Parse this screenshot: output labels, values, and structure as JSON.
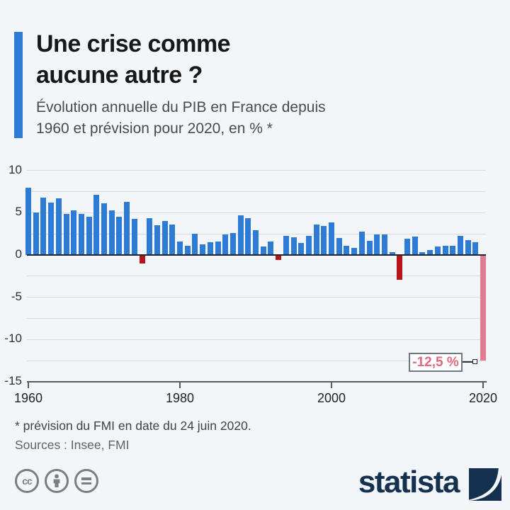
{
  "header": {
    "title_line1": "Une crise comme",
    "title_line2": "aucune autre ?",
    "subtitle_line1": "Évolution annuelle du PIB en France depuis",
    "subtitle_line2": "1960 et prévision pour 2020, en % *"
  },
  "chart_data": {
    "type": "bar",
    "title": "Une crise comme aucune autre ?",
    "xlabel": "",
    "ylabel": "Évolution annuelle du PIB en France, en %",
    "ylim": [
      -15,
      10
    ],
    "gridline_step": 2.5,
    "yticks": [
      10,
      5,
      0,
      -5,
      -10,
      -15
    ],
    "xticks": [
      1960,
      1980,
      2000,
      2020
    ],
    "x": [
      1960,
      1961,
      1962,
      1963,
      1964,
      1965,
      1966,
      1967,
      1968,
      1969,
      1970,
      1971,
      1972,
      1973,
      1974,
      1975,
      1976,
      1977,
      1978,
      1979,
      1980,
      1981,
      1982,
      1983,
      1984,
      1985,
      1986,
      1987,
      1988,
      1989,
      1990,
      1991,
      1992,
      1993,
      1994,
      1995,
      1996,
      1997,
      1998,
      1999,
      2000,
      2001,
      2002,
      2003,
      2004,
      2005,
      2006,
      2007,
      2008,
      2009,
      2010,
      2011,
      2012,
      2013,
      2014,
      2015,
      2016,
      2017,
      2018,
      2019,
      2020
    ],
    "values": [
      8.0,
      5.0,
      6.8,
      6.2,
      6.7,
      4.9,
      5.3,
      4.9,
      4.5,
      7.1,
      6.1,
      5.3,
      4.5,
      6.3,
      4.3,
      -1.0,
      4.4,
      3.5,
      4.0,
      3.6,
      1.6,
      1.1,
      2.5,
      1.3,
      1.5,
      1.6,
      2.4,
      2.6,
      4.7,
      4.4,
      2.9,
      1.0,
      1.6,
      -0.6,
      2.3,
      2.1,
      1.4,
      2.3,
      3.6,
      3.4,
      3.9,
      2.0,
      1.1,
      0.8,
      2.8,
      1.7,
      2.4,
      2.4,
      0.3,
      -2.9,
      1.9,
      2.2,
      0.3,
      0.6,
      1.0,
      1.1,
      1.1,
      2.3,
      1.8,
      1.5,
      -12.5
    ],
    "colors": {
      "positive": "#2d7bd4",
      "negative": "#b51418",
      "forecast": "#e17d92"
    },
    "forecast_year": 2020,
    "annotation": {
      "label": "-12,5 %",
      "year": 2020,
      "value": -12.5
    }
  },
  "footer": {
    "footnote": "* prévision du FMI en date du 24 juin 2020.",
    "sources": "Sources : Insee, FMI"
  },
  "branding": {
    "logo_text": "statista"
  },
  "license": {
    "cc_label": "cc"
  }
}
